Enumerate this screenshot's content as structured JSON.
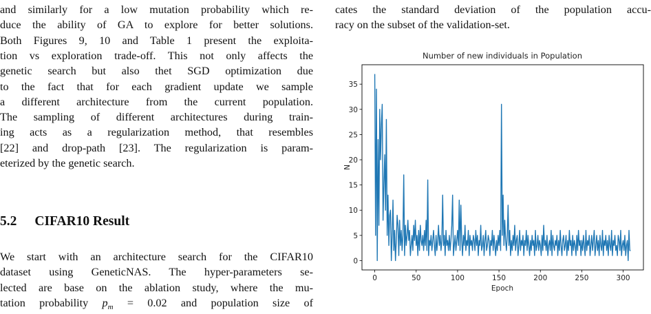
{
  "left_column": {
    "paragraph_1": [
      "and similarly for a low mutation probability which re-",
      "duce the ability of GA to explore for better solutions.",
      "Both Figures 9, 10 and Table 1 present the exploita-",
      "tion vs exploration trade-off. This not only affects the",
      "genetic search but also thet SGD optimization due",
      "to the fact that for each gradient update we sample",
      "a different architecture from the current population.",
      "The sampling of different architectures during train-",
      "ing acts as a regularization method, that resembles",
      "[22] and drop-path [23]. The regularization is param-",
      "eterized by the genetic search."
    ],
    "section": {
      "number": "5.2",
      "title": "CIFAR10 Result"
    },
    "paragraph_2": [
      "We start with an architecture search for the CIFAR10",
      "dataset using GeneticNAS. The hyper-parameters se-",
      "lected are base on the ablation study, where the mu-"
    ],
    "paragraph_2_last": {
      "before": "tation probability",
      "var": "p",
      "sub": "m",
      "after": "= 0.02 and population size of"
    }
  },
  "right_column": {
    "paragraph": [
      "cates the standard deviation of the population accu-",
      "racy on the subset of the validation-set."
    ]
  },
  "chart_data": {
    "type": "line",
    "title": "Number of new individuals in Population",
    "x_label": "Epoch",
    "y_label": "N",
    "x": [
      0,
      1,
      2,
      3,
      4,
      5,
      6,
      7,
      8,
      9,
      10,
      11,
      12,
      13,
      14,
      15,
      16,
      17,
      18,
      19,
      20,
      21,
      22,
      23,
      24,
      25,
      26,
      27,
      28,
      29,
      30,
      31,
      32,
      33,
      34,
      35,
      36,
      37,
      38,
      39,
      40,
      41,
      42,
      43,
      44,
      45,
      46,
      47,
      48,
      49,
      50,
      51,
      52,
      53,
      54,
      55,
      56,
      57,
      58,
      59,
      60,
      61,
      62,
      63,
      64,
      65,
      66,
      67,
      68,
      69,
      70,
      71,
      72,
      73,
      74,
      75,
      76,
      77,
      78,
      79,
      80,
      81,
      82,
      83,
      84,
      85,
      86,
      87,
      88,
      89,
      90,
      91,
      92,
      93,
      94,
      95,
      96,
      97,
      98,
      99,
      100,
      101,
      102,
      103,
      104,
      105,
      106,
      107,
      108,
      109,
      110,
      111,
      112,
      113,
      114,
      115,
      116,
      117,
      118,
      119,
      120,
      121,
      122,
      123,
      124,
      125,
      126,
      127,
      128,
      129,
      130,
      131,
      132,
      133,
      134,
      135,
      136,
      137,
      138,
      139,
      140,
      141,
      142,
      143,
      144,
      145,
      146,
      147,
      148,
      149,
      150,
      151,
      152,
      153,
      154,
      155,
      156,
      157,
      158,
      159,
      160,
      161,
      162,
      163,
      164,
      165,
      166,
      167,
      168,
      169,
      170,
      171,
      172,
      173,
      174,
      175,
      176,
      177,
      178,
      179,
      180,
      181,
      182,
      183,
      184,
      185,
      186,
      187,
      188,
      189,
      190,
      191,
      192,
      193,
      194,
      195,
      196,
      197,
      198,
      199,
      200,
      201,
      202,
      203,
      204,
      205,
      206,
      207,
      208,
      209,
      210,
      211,
      212,
      213,
      214,
      215,
      216,
      217,
      218,
      219,
      220,
      221,
      222,
      223,
      224,
      225,
      226,
      227,
      228,
      229,
      230,
      231,
      232,
      233,
      234,
      235,
      236,
      237,
      238,
      239,
      240,
      241,
      242,
      243,
      244,
      245,
      246,
      247,
      248,
      249,
      250,
      251,
      252,
      253,
      254,
      255,
      256,
      257,
      258,
      259,
      260,
      261,
      262,
      263,
      264,
      265,
      266,
      267,
      268,
      269,
      270,
      271,
      272,
      273,
      274,
      275,
      276,
      277,
      278,
      279,
      280,
      281,
      282,
      283,
      284,
      285,
      286,
      287,
      288,
      289,
      290,
      291,
      292,
      293,
      294,
      295,
      296,
      297,
      298,
      299,
      300,
      301,
      302,
      303,
      304,
      305,
      306,
      307,
      308,
      309
    ],
    "series": [
      {
        "color": "#1f77b4",
        "values": [
          37,
          5,
          34,
          0,
          24,
          7,
          30,
          20,
          27,
          31,
          8,
          15,
          21,
          10,
          28,
          5,
          13,
          3,
          9,
          10,
          0,
          5,
          12,
          2,
          6,
          0,
          4,
          9,
          7,
          1,
          8,
          3,
          6,
          2,
          5,
          17,
          1,
          7,
          3,
          5,
          8,
          4,
          6,
          1,
          3,
          5,
          2,
          7,
          4,
          8,
          3,
          5,
          1,
          6,
          2,
          7,
          4,
          3,
          5,
          2,
          6,
          3,
          8,
          2,
          16,
          1,
          4,
          3,
          5,
          2,
          4,
          6,
          3,
          1,
          5,
          2,
          4,
          7,
          3,
          5,
          2,
          4,
          13,
          3,
          5,
          1,
          6,
          3,
          4,
          2,
          5,
          2,
          4,
          7,
          13,
          1,
          3,
          5,
          2,
          4,
          6,
          3,
          12,
          2,
          11,
          4,
          1,
          5,
          3,
          7,
          2,
          4,
          3,
          6,
          1,
          5,
          3,
          4,
          2,
          5,
          4,
          2,
          6,
          3,
          5,
          1,
          4,
          3,
          7,
          2,
          3,
          5,
          1,
          4,
          6,
          2,
          3,
          5,
          4,
          1,
          4,
          3,
          6,
          2,
          5,
          3,
          1,
          4,
          2,
          5,
          3,
          6,
          2,
          31,
          5,
          13,
          3,
          8,
          4,
          2,
          5,
          11,
          3,
          6,
          1,
          4,
          2,
          5,
          3,
          7,
          2,
          4,
          5,
          1,
          3,
          6,
          2,
          4,
          3,
          5,
          1,
          4,
          3,
          6,
          2,
          5,
          3,
          1,
          4,
          2,
          5,
          3,
          4,
          1,
          6,
          2,
          3,
          5,
          2,
          4,
          3,
          1,
          5,
          2,
          7,
          3,
          4,
          2,
          5,
          1,
          3,
          4,
          2,
          6,
          1,
          5,
          3,
          2,
          4,
          3,
          5,
          1,
          4,
          2,
          6,
          3,
          1,
          4,
          5,
          2,
          3,
          5,
          1,
          4,
          2,
          6,
          3,
          4,
          1,
          5,
          2,
          4,
          3,
          1,
          5,
          2,
          6,
          3,
          4,
          1,
          4,
          2,
          5,
          3,
          1,
          6,
          2,
          4,
          3,
          5,
          1,
          3,
          5,
          2,
          4,
          6,
          1,
          3,
          5,
          2,
          4,
          1,
          5,
          3,
          2,
          6,
          1,
          4,
          3,
          5,
          2,
          4,
          1,
          5,
          3,
          2,
          6,
          1,
          4,
          3,
          5,
          2,
          3,
          1,
          5,
          4,
          2,
          6,
          1,
          3,
          4,
          2,
          5,
          1,
          3,
          4,
          0,
          6,
          2,
          2
        ]
      }
    ],
    "xlim": [
      -15.45,
      324.45
    ],
    "ylim": [
      -1.85,
      38.85
    ],
    "xticks": [
      0,
      50,
      100,
      150,
      200,
      250,
      300
    ],
    "yticks": [
      0,
      5,
      10,
      15,
      20,
      25,
      30,
      35
    ]
  }
}
